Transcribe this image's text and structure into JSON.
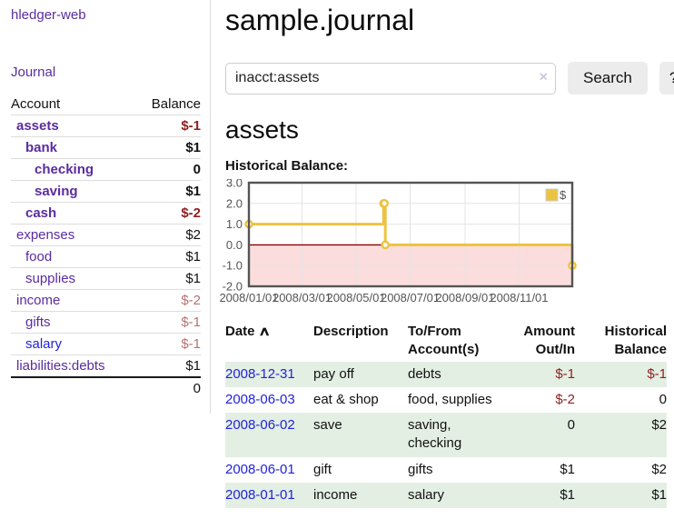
{
  "colors": {
    "link_purple": "#5a2ca0",
    "link_blue": "#2222dd",
    "negative_strong": "#8e1f1f",
    "negative_muted": "#b87272",
    "row_green": "#e3efe3",
    "chart_line": "#EDC240",
    "chart_border": "#545454",
    "chart_negative_fill": "#fbdddd",
    "chart_zero_line": "#8b0000"
  },
  "sidebar": {
    "app_title": "hledger-web",
    "journal_link": "Journal",
    "account_header": "Account",
    "balance_header": "Balance",
    "accounts": [
      {
        "name": "assets",
        "balance": "$-1",
        "indent": 0,
        "bold": true,
        "balance_tone": "strong-negative",
        "name_color": "purple"
      },
      {
        "name": "bank",
        "balance": "$1",
        "indent": 1,
        "bold": true,
        "balance_tone": "normal",
        "name_color": "purple"
      },
      {
        "name": "checking",
        "balance": "0",
        "indent": 2,
        "bold": true,
        "balance_tone": "normal",
        "name_color": "purple"
      },
      {
        "name": "saving",
        "balance": "$1",
        "indent": 2,
        "bold": true,
        "balance_tone": "normal",
        "name_color": "purple"
      },
      {
        "name": "cash",
        "balance": "$-2",
        "indent": 1,
        "bold": true,
        "balance_tone": "strong-negative",
        "name_color": "purple"
      },
      {
        "name": "expenses",
        "balance": "$2",
        "indent": 0,
        "bold": false,
        "balance_tone": "normal",
        "name_color": "purple"
      },
      {
        "name": "food",
        "balance": "$1",
        "indent": 1,
        "bold": false,
        "balance_tone": "normal",
        "name_color": "purple"
      },
      {
        "name": "supplies",
        "balance": "$1",
        "indent": 1,
        "bold": false,
        "balance_tone": "normal",
        "name_color": "purple"
      },
      {
        "name": "income",
        "balance": "$-2",
        "indent": 0,
        "bold": false,
        "balance_tone": "muted-negative",
        "name_color": "purple"
      },
      {
        "name": "gifts",
        "balance": "$-1",
        "indent": 1,
        "bold": false,
        "balance_tone": "muted-negative",
        "name_color": "purple"
      },
      {
        "name": "salary",
        "balance": "$-1",
        "indent": 1,
        "bold": false,
        "balance_tone": "muted-negative",
        "name_color": "blue"
      },
      {
        "name": "liabilities:debts",
        "balance": "$1",
        "indent": 0,
        "bold": false,
        "balance_tone": "normal",
        "name_color": "purple"
      }
    ],
    "total": "0"
  },
  "main": {
    "title": "sample.journal",
    "account_heading": "assets",
    "chart_title": "Historical Balance:"
  },
  "search": {
    "value": "inacct:assets",
    "clear_icon": "×",
    "button_label": "Search",
    "help_label": "?"
  },
  "chart_data": {
    "type": "line",
    "line_style": "step-after",
    "title": "Historical Balance:",
    "series": [
      {
        "name": "$",
        "color": "#EDC240",
        "points": [
          {
            "x": "2008-01-01",
            "y": 1
          },
          {
            "x": "2008-06-01",
            "y": 2
          },
          {
            "x": "2008-06-02",
            "y": 2
          },
          {
            "x": "2008-06-03",
            "y": 0
          },
          {
            "x": "2008-12-31",
            "y": -1
          }
        ]
      }
    ],
    "xlim": [
      "2008-01-01",
      "2008-12-31"
    ],
    "ylim": [
      -2,
      3
    ],
    "yticks": [
      {
        "value": 3,
        "label": "3.0"
      },
      {
        "value": 2,
        "label": "2.0"
      },
      {
        "value": 1,
        "label": "1.0"
      },
      {
        "value": 0,
        "label": "0.0"
      },
      {
        "value": -1,
        "label": "-1.0"
      },
      {
        "value": -2,
        "label": "-2.0"
      }
    ],
    "xticks": [
      {
        "value": "2008-01-01",
        "label": "2008/01/01"
      },
      {
        "value": "2008-03-01",
        "label": "2008/03/01"
      },
      {
        "value": "2008-05-01",
        "label": "2008/05/01"
      },
      {
        "value": "2008-07-01",
        "label": "2008/07/01"
      },
      {
        "value": "2008-09-01",
        "label": "2008/09/01"
      },
      {
        "value": "2008-11-01",
        "label": "2008/11/01"
      }
    ],
    "legend": {
      "label": "$",
      "position": "top-right"
    },
    "grid": true,
    "negative_region_shaded": true,
    "zero_line": true
  },
  "register": {
    "headers": {
      "date": "Date",
      "sort_icon": "∧",
      "description": "Description",
      "accounts_line1": "To/From",
      "accounts_line2": "Account(s)",
      "amount_line1": "Amount",
      "amount_line2": "Out/In",
      "balance_line1": "Historical",
      "balance_line2": "Balance"
    },
    "rows": [
      {
        "date": "2008-12-31",
        "description": "pay off",
        "accounts": "debts",
        "amount": "$-1",
        "amount_negative": true,
        "balance": "$-1",
        "balance_negative": true,
        "green": true
      },
      {
        "date": "2008-06-03",
        "description": "eat & shop",
        "accounts": "food, supplies",
        "amount": "$-2",
        "amount_negative": true,
        "balance": "0",
        "balance_negative": false,
        "green": false
      },
      {
        "date": "2008-06-02",
        "description": "save",
        "accounts": "saving, checking",
        "amount": "0",
        "amount_negative": false,
        "balance": "$2",
        "balance_negative": false,
        "green": true
      },
      {
        "date": "2008-06-01",
        "description": "gift",
        "accounts": "gifts",
        "amount": "$1",
        "amount_negative": false,
        "balance": "$2",
        "balance_negative": false,
        "green": false
      },
      {
        "date": "2008-01-01",
        "description": "income",
        "accounts": "salary",
        "amount": "$1",
        "amount_negative": false,
        "balance": "$1",
        "balance_negative": false,
        "green": true
      }
    ]
  }
}
